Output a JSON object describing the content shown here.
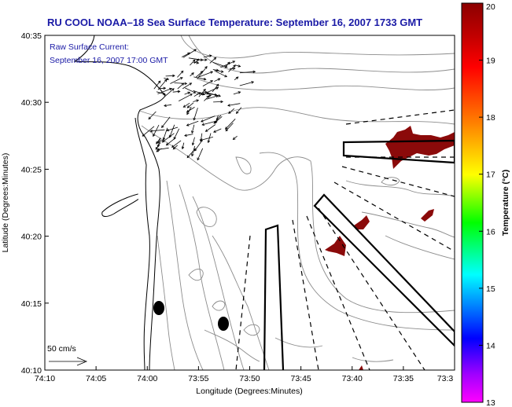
{
  "title": "RU COOL  NOAA–18  Sea Surface Temperature:  September 16, 2007 1733 GMT",
  "current_note": {
    "line1": "Raw Surface Current:",
    "line2": "September 16, 2007 17:00 GMT"
  },
  "axes": {
    "x_label": "Longitude (Degrees:Minutes)",
    "y_label": "Latitude (Degrees:Minutes)",
    "x_ticks": [
      "74:10",
      "74:05",
      "74:00",
      "73:55",
      "73:50",
      "73:45",
      "73:40",
      "73:35",
      "73:3"
    ],
    "y_ticks": [
      "40:35",
      "40:30",
      "40:25",
      "40:20",
      "40:15",
      "40:10"
    ]
  },
  "scale_bar": {
    "label": "50 cm/s"
  },
  "colorbar": {
    "label": "Temperature (°C)",
    "ticks": [
      "20",
      "19",
      "18",
      "17",
      "16",
      "15",
      "14",
      "13"
    ],
    "colors": [
      "#8b0000",
      "#ff0000",
      "#ff8c00",
      "#ffff00",
      "#00ff00",
      "#00ffff",
      "#0000ff",
      "#ff00ff"
    ]
  },
  "colors": {
    "title": "#1a1aa6",
    "sst_patch": "#8b0a0a",
    "bathymetry": "#8c8c8c",
    "coastline": "#000000"
  }
}
